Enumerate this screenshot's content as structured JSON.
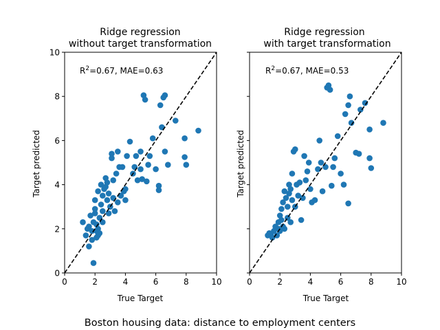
{
  "figure": {
    "suptitle": "Boston housing data: distance to employment centers"
  },
  "chart_data": [
    {
      "type": "scatter",
      "title_line1": "Ridge regression",
      "title_line2": "without target transformation",
      "xlabel": "True Target",
      "ylabel": "Target predicted",
      "xlim": [
        0,
        10
      ],
      "ylim": [
        0,
        10
      ],
      "xticks": [
        "0",
        "2",
        "4",
        "6",
        "8",
        "10"
      ],
      "yticks": [
        "0",
        "2",
        "4",
        "6",
        "8",
        "10"
      ],
      "show_ytick_labels": true,
      "annotation_prefix": "R",
      "annotation_sup": "2",
      "annotation_rest": "=0.67, MAE=0.63",
      "reference_line": "y = x (dashed)",
      "color": "#1f77b4",
      "points": [
        [
          1.2,
          2.3
        ],
        [
          1.4,
          1.7
        ],
        [
          1.5,
          2.0
        ],
        [
          1.6,
          2.1
        ],
        [
          1.6,
          1.2
        ],
        [
          1.7,
          2.6
        ],
        [
          1.8,
          1.9
        ],
        [
          1.8,
          1.5
        ],
        [
          1.9,
          2.3
        ],
        [
          1.9,
          0.45
        ],
        [
          2.0,
          2.7
        ],
        [
          2.0,
          2.9
        ],
        [
          2.0,
          3.3
        ],
        [
          2.1,
          1.9
        ],
        [
          2.1,
          2.2
        ],
        [
          2.1,
          1.6
        ],
        [
          2.2,
          2.0
        ],
        [
          2.2,
          3.7
        ],
        [
          2.2,
          1.7
        ],
        [
          2.3,
          1.8
        ],
        [
          2.3,
          2.5
        ],
        [
          2.4,
          4.0
        ],
        [
          2.4,
          3.1
        ],
        [
          2.5,
          2.8
        ],
        [
          2.5,
          3.5
        ],
        [
          2.5,
          2.3
        ],
        [
          2.6,
          3.8
        ],
        [
          2.7,
          3.9
        ],
        [
          2.7,
          4.3
        ],
        [
          2.8,
          4.1
        ],
        [
          2.8,
          3.3
        ],
        [
          2.9,
          2.7
        ],
        [
          2.9,
          3.6
        ],
        [
          3.0,
          3.0
        ],
        [
          3.1,
          5.2
        ],
        [
          3.1,
          5.4
        ],
        [
          3.2,
          4.2
        ],
        [
          3.2,
          3.4
        ],
        [
          3.3,
          2.8
        ],
        [
          3.4,
          4.5
        ],
        [
          3.5,
          5.5
        ],
        [
          3.5,
          3.2
        ],
        [
          3.6,
          4.8
        ],
        [
          3.7,
          3.5
        ],
        [
          3.8,
          4.8
        ],
        [
          3.9,
          3.7
        ],
        [
          4.0,
          3.8
        ],
        [
          4.0,
          3.3
        ],
        [
          4.1,
          5.3
        ],
        [
          4.3,
          5.95
        ],
        [
          4.5,
          4.5
        ],
        [
          4.6,
          4.8
        ],
        [
          4.7,
          5.3
        ],
        [
          4.8,
          4.2
        ],
        [
          5.0,
          5.5
        ],
        [
          5.0,
          4.7
        ],
        [
          5.1,
          4.25
        ],
        [
          5.2,
          8.05
        ],
        [
          5.3,
          7.85
        ],
        [
          5.4,
          4.15
        ],
        [
          5.5,
          4.9
        ],
        [
          5.6,
          5.3
        ],
        [
          5.8,
          6.1
        ],
        [
          6.0,
          4.7
        ],
        [
          6.2,
          3.75
        ],
        [
          6.2,
          3.95
        ],
        [
          6.3,
          7.6
        ],
        [
          6.4,
          6.6
        ],
        [
          6.5,
          7.95
        ],
        [
          6.6,
          8.05
        ],
        [
          6.6,
          5.5
        ],
        [
          6.8,
          4.9
        ],
        [
          7.3,
          6.9
        ],
        [
          7.9,
          6.1
        ],
        [
          7.9,
          5.25
        ],
        [
          8.0,
          4.9
        ],
        [
          8.8,
          6.45
        ]
      ]
    },
    {
      "type": "scatter",
      "title_line1": "Ridge regression",
      "title_line2": "with target transformation",
      "xlabel": "True Target",
      "ylabel": "Target predicted",
      "xlim": [
        0,
        10
      ],
      "ylim": [
        0,
        10
      ],
      "xticks": [
        "0",
        "2",
        "4",
        "6",
        "8",
        "10"
      ],
      "yticks": [
        "0",
        "2",
        "4",
        "6",
        "8",
        "10"
      ],
      "show_ytick_labels": false,
      "annotation_prefix": "R",
      "annotation_sup": "2",
      "annotation_rest": "=0.67, MAE=0.53",
      "reference_line": "y = x (dashed)",
      "color": "#1f77b4",
      "points": [
        [
          1.2,
          1.7
        ],
        [
          1.3,
          1.8
        ],
        [
          1.4,
          1.75
        ],
        [
          1.5,
          1.6
        ],
        [
          1.6,
          1.9
        ],
        [
          1.7,
          2.1
        ],
        [
          1.8,
          1.7
        ],
        [
          1.9,
          2.0
        ],
        [
          1.9,
          2.3
        ],
        [
          2.0,
          2.6
        ],
        [
          2.0,
          1.9
        ],
        [
          2.1,
          2.4
        ],
        [
          2.1,
          2.9
        ],
        [
          2.2,
          3.2
        ],
        [
          2.2,
          2.1
        ],
        [
          2.3,
          2.0
        ],
        [
          2.3,
          3.7
        ],
        [
          2.4,
          3.4
        ],
        [
          2.5,
          2.5
        ],
        [
          2.5,
          3.0
        ],
        [
          2.6,
          3.6
        ],
        [
          2.6,
          4.0
        ],
        [
          2.7,
          3.8
        ],
        [
          2.7,
          2.3
        ],
        [
          2.8,
          4.5
        ],
        [
          2.8,
          3.3
        ],
        [
          2.9,
          5.5
        ],
        [
          3.0,
          5.6
        ],
        [
          3.0,
          3.0
        ],
        [
          3.1,
          4.0
        ],
        [
          3.2,
          3.5
        ],
        [
          3.3,
          4.1
        ],
        [
          3.4,
          2.4
        ],
        [
          3.5,
          3.4
        ],
        [
          3.6,
          5.3
        ],
        [
          3.7,
          4.2
        ],
        [
          3.8,
          4.6
        ],
        [
          3.9,
          5.0
        ],
        [
          4.0,
          3.8
        ],
        [
          4.1,
          3.2
        ],
        [
          4.3,
          3.3
        ],
        [
          4.5,
          4.7
        ],
        [
          4.6,
          6.0
        ],
        [
          4.7,
          5.0
        ],
        [
          4.8,
          3.7
        ],
        [
          5.0,
          4.8
        ],
        [
          5.1,
          8.4
        ],
        [
          5.2,
          8.5
        ],
        [
          5.3,
          8.3
        ],
        [
          5.4,
          3.95
        ],
        [
          5.5,
          4.8
        ],
        [
          5.6,
          5.2
        ],
        [
          5.8,
          6.2
        ],
        [
          6.0,
          4.5
        ],
        [
          6.2,
          4.0
        ],
        [
          6.3,
          7.2
        ],
        [
          6.5,
          3.15
        ],
        [
          6.5,
          7.6
        ],
        [
          6.6,
          8.0
        ],
        [
          6.7,
          6.8
        ],
        [
          7.0,
          5.45
        ],
        [
          7.2,
          5.4
        ],
        [
          7.3,
          7.4
        ],
        [
          7.6,
          7.7
        ],
        [
          7.9,
          6.5
        ],
        [
          7.9,
          5.2
        ],
        [
          8.0,
          4.75
        ],
        [
          8.8,
          6.8
        ]
      ]
    }
  ]
}
